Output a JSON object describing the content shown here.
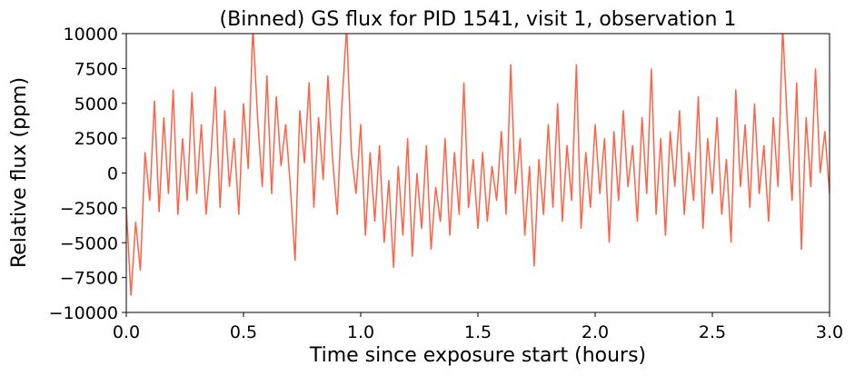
{
  "chart_data": {
    "type": "line",
    "title": "(Binned) GS flux for PID 1541, visit 1, observation 1",
    "x_label": "Time since exposure start (hours)",
    "y_label": "Relative flux (ppm)",
    "xlim": [
      0,
      3
    ],
    "ylim": [
      -10000,
      10000
    ],
    "xticks": [
      {
        "value": 0,
        "label": "0.0"
      },
      0.5,
      {
        "value": 1,
        "label": "1.0"
      },
      1.5,
      {
        "value": 2,
        "label": "2.0"
      },
      2.5,
      {
        "value": 3,
        "label": "3.0"
      }
    ],
    "yticks": [
      {
        "value": -10000,
        "label": "−10000"
      },
      {
        "value": -7500,
        "label": "−7500"
      },
      {
        "value": -5000,
        "label": "−5000"
      },
      {
        "value": -2500,
        "label": "−2500"
      },
      0,
      2500,
      5000,
      7500,
      10000
    ],
    "color": "#ff6347",
    "x": [
      0,
      0.02,
      0.04,
      0.06,
      0.08,
      0.1,
      0.12,
      0.14,
      0.16,
      0.18,
      0.2,
      0.22,
      0.24,
      0.26,
      0.28,
      0.3,
      0.32,
      0.34,
      0.36,
      0.38,
      0.4,
      0.42,
      0.44,
      0.46,
      0.48,
      0.5,
      0.52,
      0.54,
      0.56,
      0.58,
      0.6,
      0.62,
      0.64,
      0.66,
      0.68,
      0.7,
      0.72,
      0.74,
      0.76,
      0.78,
      0.8,
      0.82,
      0.84,
      0.86,
      0.88,
      0.9,
      0.92,
      0.94,
      0.96,
      0.98,
      1,
      1.02,
      1.04,
      1.06,
      1.08,
      1.1,
      1.12,
      1.14,
      1.16,
      1.18,
      1.2,
      1.22,
      1.24,
      1.26,
      1.28,
      1.3,
      1.32,
      1.34,
      1.36,
      1.38,
      1.4,
      1.42,
      1.44,
      1.46,
      1.48,
      1.5,
      1.52,
      1.54,
      1.56,
      1.58,
      1.6,
      1.62,
      1.64,
      1.66,
      1.68,
      1.7,
      1.72,
      1.74,
      1.76,
      1.78,
      1.8,
      1.82,
      1.84,
      1.86,
      1.88,
      1.9,
      1.92,
      1.94,
      1.96,
      1.98,
      2,
      2.02,
      2.04,
      2.06,
      2.08,
      2.1,
      2.12,
      2.14,
      2.16,
      2.18,
      2.2,
      2.22,
      2.24,
      2.26,
      2.28,
      2.3,
      2.32,
      2.34,
      2.36,
      2.38,
      2.4,
      2.42,
      2.44,
      2.46,
      2.48,
      2.5,
      2.52,
      2.54,
      2.56,
      2.58,
      2.6,
      2.62,
      2.64,
      2.66,
      2.68,
      2.7,
      2.72,
      2.74,
      2.76,
      2.78,
      2.8,
      2.82,
      2.84,
      2.86,
      2.88,
      2.9,
      2.92,
      2.94,
      2.96,
      2.98,
      3
    ],
    "values": [
      -2500,
      -8800,
      -3500,
      -7000,
      1500,
      -2000,
      5200,
      -2800,
      4000,
      -1500,
      6000,
      -3000,
      2500,
      -2000,
      5800,
      -1500,
      3500,
      -3000,
      1000,
      6200,
      -2500,
      4500,
      -1000,
      2500,
      -3000,
      5000,
      300,
      10500,
      4000,
      -1000,
      7000,
      -1500,
      5500,
      500,
      3500,
      -1000,
      -6300,
      4500,
      700,
      6500,
      -2500,
      4000,
      -500,
      7000,
      1000,
      -3000,
      5000,
      10500,
      1500,
      -1500,
      3500,
      -4500,
      1500,
      -3500,
      2000,
      -5000,
      -500,
      -6800,
      500,
      -4500,
      2500,
      -6000,
      0,
      -4000,
      2000,
      -5500,
      -1000,
      -3500,
      2500,
      -4500,
      1500,
      -3000,
      6500,
      -2500,
      1000,
      -4000,
      1500,
      -3500,
      500,
      -2000,
      3000,
      -3000,
      7800,
      -1500,
      2500,
      -4500,
      500,
      -6700,
      1000,
      -3000,
      3500,
      -2500,
      5000,
      -3500,
      2000,
      -2000,
      7800,
      -4000,
      1500,
      -2500,
      3500,
      -1500,
      2500,
      -5000,
      3000,
      -2000,
      4500,
      -1000,
      2000,
      -3500,
      4000,
      -1500,
      7500,
      -3000,
      2500,
      -4500,
      3000,
      -1000,
      4500,
      -3000,
      1500,
      -2000,
      5500,
      -4000,
      2500,
      -1500,
      4000,
      -3000,
      1000,
      -5000,
      6000,
      -1000,
      3500,
      -2500,
      5000,
      -1500,
      2000,
      -3500,
      4000,
      -1000,
      10500,
      3500,
      -2000,
      6500,
      -5500,
      4000,
      -1000,
      7500,
      0,
      3000,
      -1500
    ]
  }
}
